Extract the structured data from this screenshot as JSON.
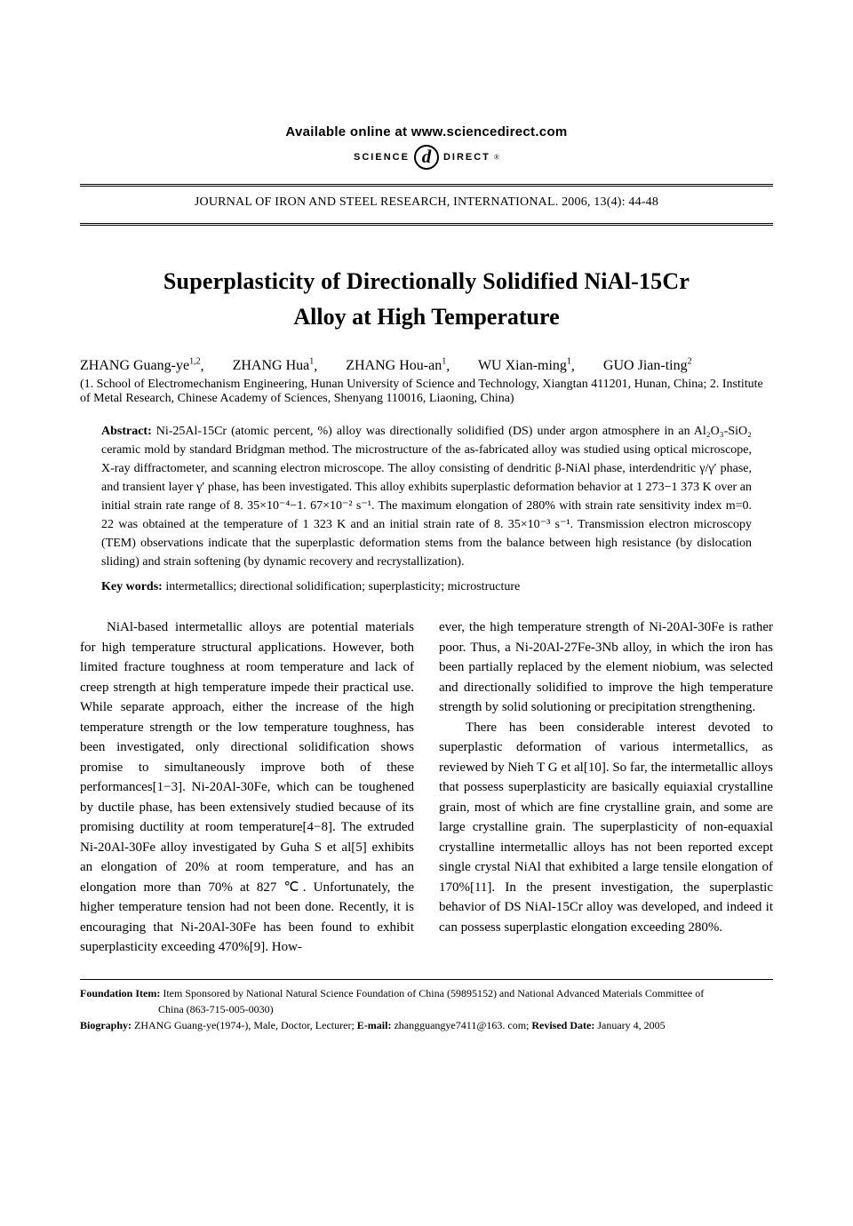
{
  "header": {
    "available_online": "Available online at www.sciencedirect.com",
    "logo_science": "SCIENCE",
    "logo_d": "d",
    "logo_direct": "DIRECT",
    "logo_reg": "®",
    "journal_ref": "JOURNAL OF IRON AND STEEL RESEARCH, INTERNATIONAL. 2006, 13(4): 44-48"
  },
  "title_line1": "Superplasticity of Directionally Solidified NiAl-15Cr",
  "title_line2": "Alloy at High Temperature",
  "authors": {
    "a1_name": "ZHANG Guang-ye",
    "a1_sup": "1,2",
    "a2_name": "ZHANG Hua",
    "a2_sup": "1",
    "a3_name": "ZHANG Hou-an",
    "a3_sup": "1",
    "a4_name": "WU Xian-ming",
    "a4_sup": "1",
    "a5_name": "GUO Jian-ting",
    "a5_sup": "2"
  },
  "affiliations": "(1. School of Electromechanism Engineering, Hunan University of Science and Technology, Xiangtan 411201, Hunan, China;    2. Institute of Metal Research, Chinese Academy of Sciences, Shenyang 110016, Liaoning, China)",
  "abstract": {
    "label": "Abstract:",
    "text": " Ni-25Al-15Cr (atomic percent, %) alloy was directionally solidified (DS) under argon atmosphere in an Al₂O₃-SiO₂ ceramic mold by standard Bridgman method. The microstructure of the as-fabricated alloy was studied using optical microscope, X-ray diffractometer, and scanning electron microscope. The alloy consisting of dendritic β-NiAl phase, interdendritic γ/γ′ phase, and transient layer γ′ phase, has been investigated. This alloy exhibits superplastic deformation behavior at 1 273−1 373 K over an initial strain rate range of 8. 35×10⁻⁴−1. 67×10⁻² s⁻¹. The maximum elongation of 280% with strain rate sensitivity index m=0. 22 was obtained at the temperature of 1 323 K and an initial strain rate of 8. 35×10⁻³ s⁻¹. Transmission electron microscopy (TEM) observations indicate that the superplastic deformation stems from the balance between high resistance (by dislocation sliding) and strain softening (by dynamic recovery and recrystallization)."
  },
  "keywords": {
    "label": "Key words:",
    "text": " intermetallics; directional solidification; superplasticity; microstructure"
  },
  "body": {
    "col1": "NiAl-based intermetallic alloys are potential materials for high temperature structural applications. However, both limited fracture toughness at room temperature and lack of creep strength at high temperature impede their practical use. While separate approach, either the increase of the high temperature strength or the low temperature toughness, has been investigated, only directional solidification shows promise to simultaneously improve both of these performances[1−3]. Ni-20Al-30Fe, which can be toughened by ductile phase, has been extensively studied because of its promising ductility at room temperature[4−8]. The extruded Ni-20Al-30Fe alloy investigated by Guha S et al[5] exhibits an elongation of 20% at room temperature, and has an elongation more than 70% at 827 ℃. Unfortunately, the higher temperature tension had not been done. Recently, it is encouraging that Ni-20Al-30Fe has been found to exhibit superplasticity exceeding 470%[9]. How-",
    "col2_p1": "ever, the high temperature strength of Ni-20Al-30Fe is rather poor. Thus, a Ni-20Al-27Fe-3Nb alloy, in which the iron has been partially replaced by the element niobium, was selected and directionally solidified to improve the high temperature strength by solid solutioning or precipitation strengthening.",
    "col2_p2": "There has been considerable interest devoted to superplastic deformation of various intermetallics, as reviewed by Nieh T G et al[10]. So far, the intermetallic alloys that possess superplasticity are basically equiaxial crystalline grain, most of which are fine crystalline grain, and some are large crystalline grain. The superplasticity of non-equaxial crystalline intermetallic alloys has not been reported except single crystal NiAl that exhibited a large tensile elongation of 170%[11]. In the present investigation, the superplastic behavior of DS NiAl-15Cr alloy was developed, and indeed it can possess superplastic elongation exceeding 280%."
  },
  "footer": {
    "foundation_label": "Foundation Item:",
    "foundation_text": "Item Sponsored by National Natural Science Foundation of China (59895152) and National Advanced Materials Committee of",
    "foundation_text2": "China (863-715-005-0030)",
    "biography_label": "Biography:",
    "biography_text": "ZHANG Guang-ye(1974-), Male, Doctor, Lecturer;    ",
    "email_label": "E-mail:",
    "email_text": "zhangguangye7411@163. com;    ",
    "revised_label": "Revised Date:",
    "revised_text": "January 4, 2005"
  },
  "colors": {
    "text": "#000000",
    "background": "#ffffff",
    "rule": "#000000"
  },
  "fonts": {
    "body_family": "Times New Roman",
    "header_family": "Arial",
    "title_pt": 26,
    "body_pt": 15,
    "abstract_pt": 14,
    "footer_pt": 12
  }
}
